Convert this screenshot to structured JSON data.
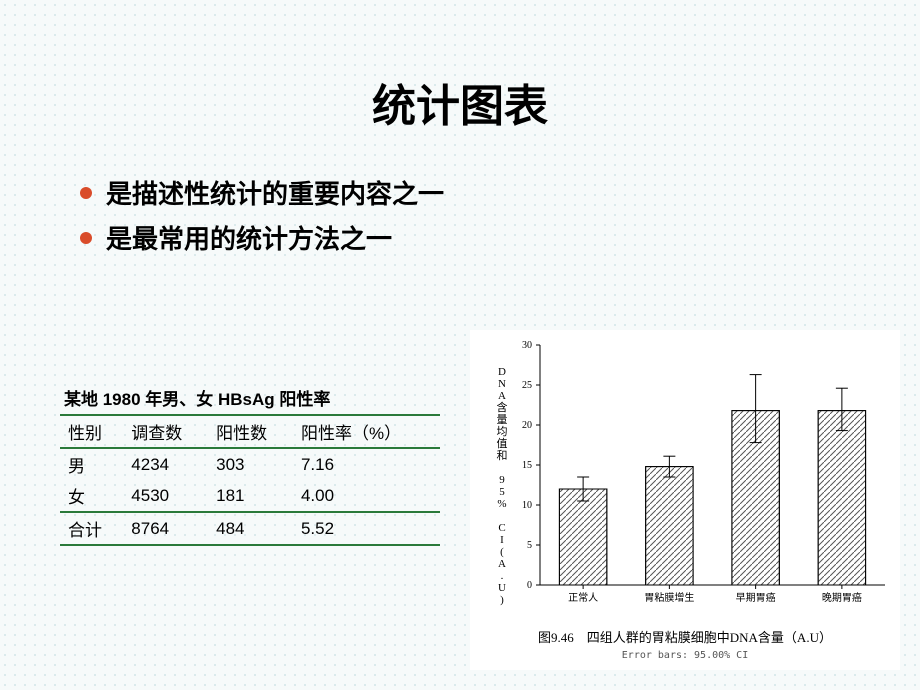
{
  "title": "统计图表",
  "bullets": [
    "是描述性统计的重要内容之一",
    "是最常用的统计方法之一"
  ],
  "table": {
    "caption": "某地 1980 年男、女 HBsAg 阳性率",
    "columns": [
      "性别",
      "调查数",
      "阳性数",
      "阳性率（%）"
    ],
    "rows": [
      [
        "男",
        "4234",
        "303",
        "7.16"
      ],
      [
        "女",
        "4530",
        "181",
        "4.00"
      ]
    ],
    "sumrow": [
      "合计",
      "8764",
      "484",
      "5.52"
    ]
  },
  "chart": {
    "type": "bar",
    "y_label": "DNA含量均值和 95% CI(A.U)",
    "categories": [
      "正常人",
      "胃粘膜增生",
      "早期胃癌",
      "晚期胃癌"
    ],
    "values": [
      12,
      14.8,
      21.8,
      21.8
    ],
    "err_low": [
      1.5,
      1.3,
      4.0,
      2.5
    ],
    "err_high": [
      1.5,
      1.3,
      4.5,
      2.8
    ],
    "ylim": [
      0,
      30
    ],
    "ytick_step": 5,
    "bar_fill": "#ffffff",
    "bar_stroke": "#000000",
    "hatch_color": "#555555",
    "axis_color": "#000000",
    "tick_font_size": 10,
    "cat_font_size": 10,
    "caption": "图9.46　四组人群的胃粘膜细胞中DNA含量（A.U）",
    "subcaption": "Error bars: 95.00% CI"
  }
}
